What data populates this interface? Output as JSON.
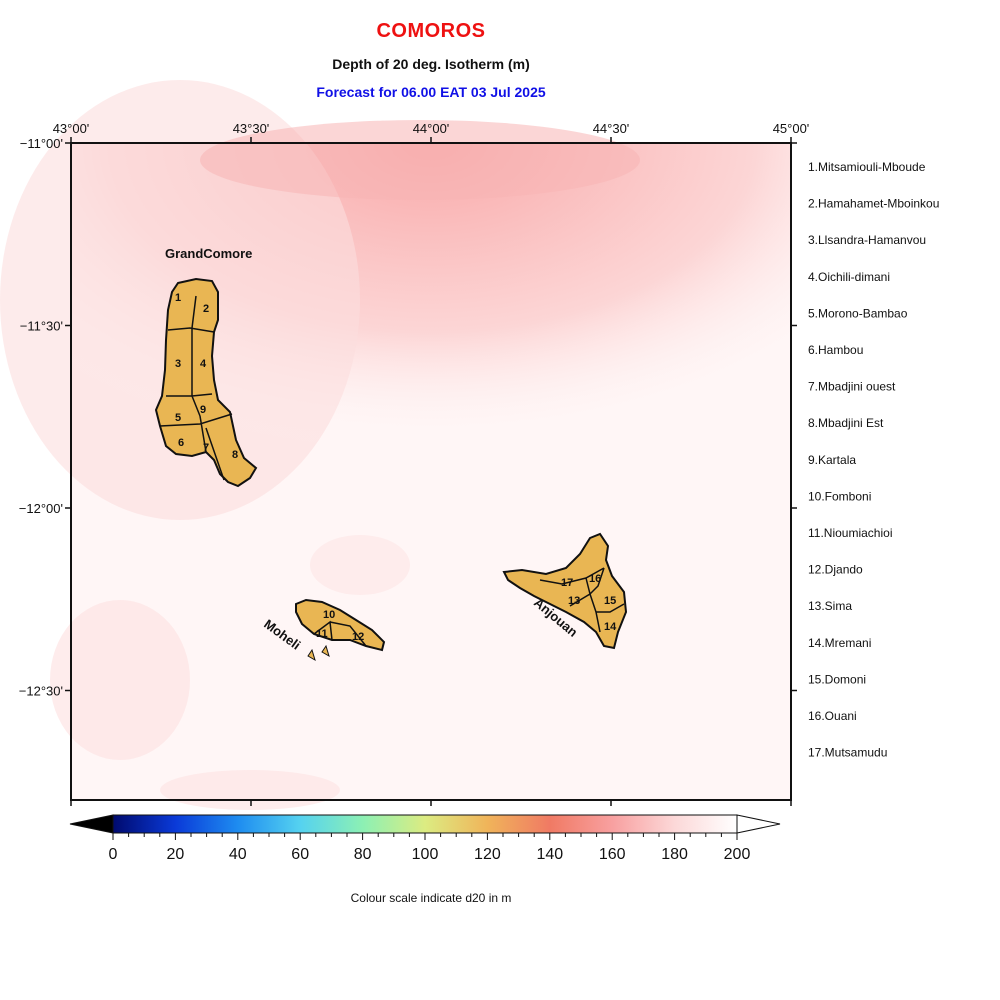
{
  "header": {
    "title": "COMOROS",
    "subtitle": "Depth of 20 deg. Isotherm (m)",
    "forecast": "Forecast for  06.00 EAT 03 Jul 2025"
  },
  "map": {
    "lon_range": [
      43.0,
      45.0
    ],
    "lat_range": [
      -12.8,
      -11.0
    ],
    "lon_ticks": [
      {
        "value": 43.0,
        "label": "43°00'"
      },
      {
        "value": 43.5,
        "label": "43°30'"
      },
      {
        "value": 44.0,
        "label": "44°00'"
      },
      {
        "value": 44.5,
        "label": "44°30'"
      },
      {
        "value": 45.0,
        "label": "45°00'"
      }
    ],
    "lat_ticks": [
      {
        "value": -11.0,
        "label": "−11°00'"
      },
      {
        "value": -11.5,
        "label": "−11°30'"
      },
      {
        "value": -12.0,
        "label": "−12°00'"
      },
      {
        "value": -12.5,
        "label": "−12°30'"
      }
    ],
    "land_color": "#e9b653",
    "islands": [
      {
        "name": "GrandComore"
      },
      {
        "name": "Moheli"
      },
      {
        "name": "Anjouan"
      }
    ],
    "region_numbers": [
      "1",
      "2",
      "3",
      "4",
      "5",
      "9",
      "6",
      "7",
      "8",
      "10",
      "11",
      "12",
      "17",
      "16",
      "13",
      "15",
      "14"
    ]
  },
  "legend": {
    "items": [
      "1.Mitsamiouli-Mboude",
      "2.Hamahamet-Mboinkou",
      "3.Llsandra-Hamanvou",
      "4.Oichili-dimani",
      "5.Morono-Bambao",
      "6.Hambou",
      "7.Mbadjini ouest",
      "8.Mbadjini Est",
      "9.Kartala",
      "10.Fomboni",
      "11.Nioumiachioi",
      "12.Djando",
      "13.Sima",
      "14.Mremani",
      "15.Domoni",
      "16.Ouani",
      "17.Mutsamudu"
    ]
  },
  "colorbar": {
    "min": 0,
    "max": 200,
    "labels": [
      "0",
      "20",
      "40",
      "60",
      "80",
      "100",
      "120",
      "140",
      "160",
      "180",
      "200"
    ],
    "caption": "Colour scale indicate d20 in m",
    "colors": [
      "#000a6e",
      "#0a3ad8",
      "#1e8cf0",
      "#55d2f0",
      "#8cf0b4",
      "#dcec82",
      "#f0b45a",
      "#f07a64",
      "#f8a0a0",
      "#fcd8d8",
      "#ffffff"
    ]
  }
}
